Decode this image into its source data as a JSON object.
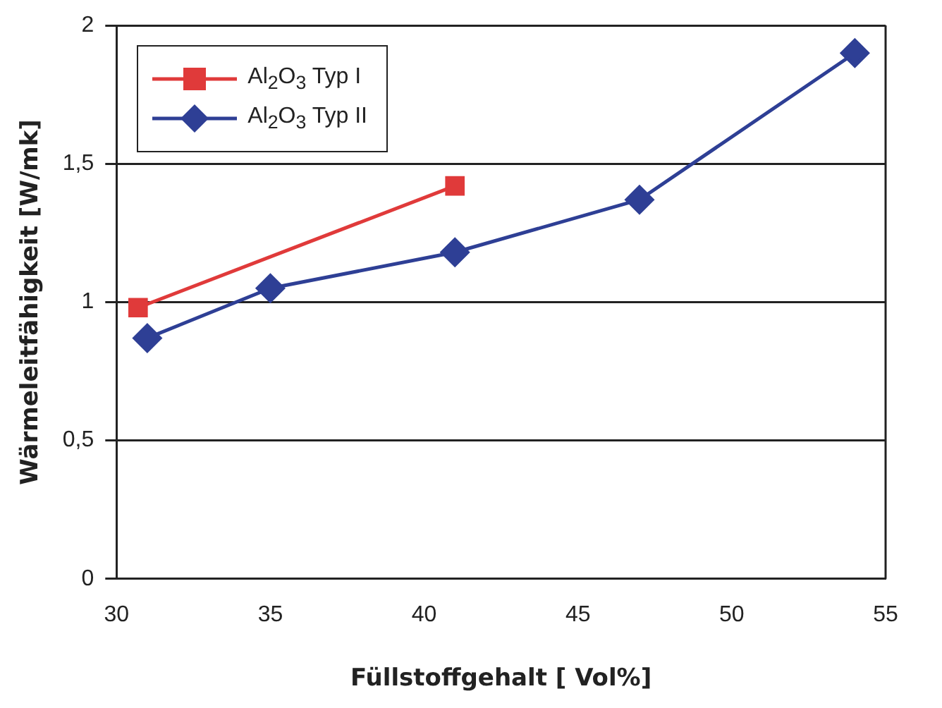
{
  "chart_data": {
    "type": "line",
    "xlabel": "Füllstoffgehalt [ Vol%]",
    "ylabel": "Wärmeleitfähigkeit [W/mk]",
    "xlim": [
      30,
      55
    ],
    "xticks": [
      30,
      35,
      40,
      45,
      50,
      55
    ],
    "ylim": [
      0,
      2
    ],
    "yticks": [
      0,
      {
        "value": 0.5,
        "label": "0,5"
      },
      1,
      {
        "value": 1.5,
        "label": "1,5"
      },
      2
    ],
    "grid": "y",
    "legend": "top left",
    "line_style": "solid",
    "series": [
      {
        "name": "Al$_{2}$O$_{3}$ Typ I",
        "color": "#e03a3a",
        "marker": "square",
        "x": [
          30.7,
          41
        ],
        "values": [
          0.98,
          1.42
        ]
      },
      {
        "name": "Al$_{2}$O$_{3}$ Typ II",
        "color": "#2e3f95",
        "marker": "diamond",
        "x": [
          31,
          35,
          41,
          47,
          54
        ],
        "values": [
          0.87,
          1.05,
          1.18,
          1.37,
          1.9
        ]
      }
    ]
  }
}
